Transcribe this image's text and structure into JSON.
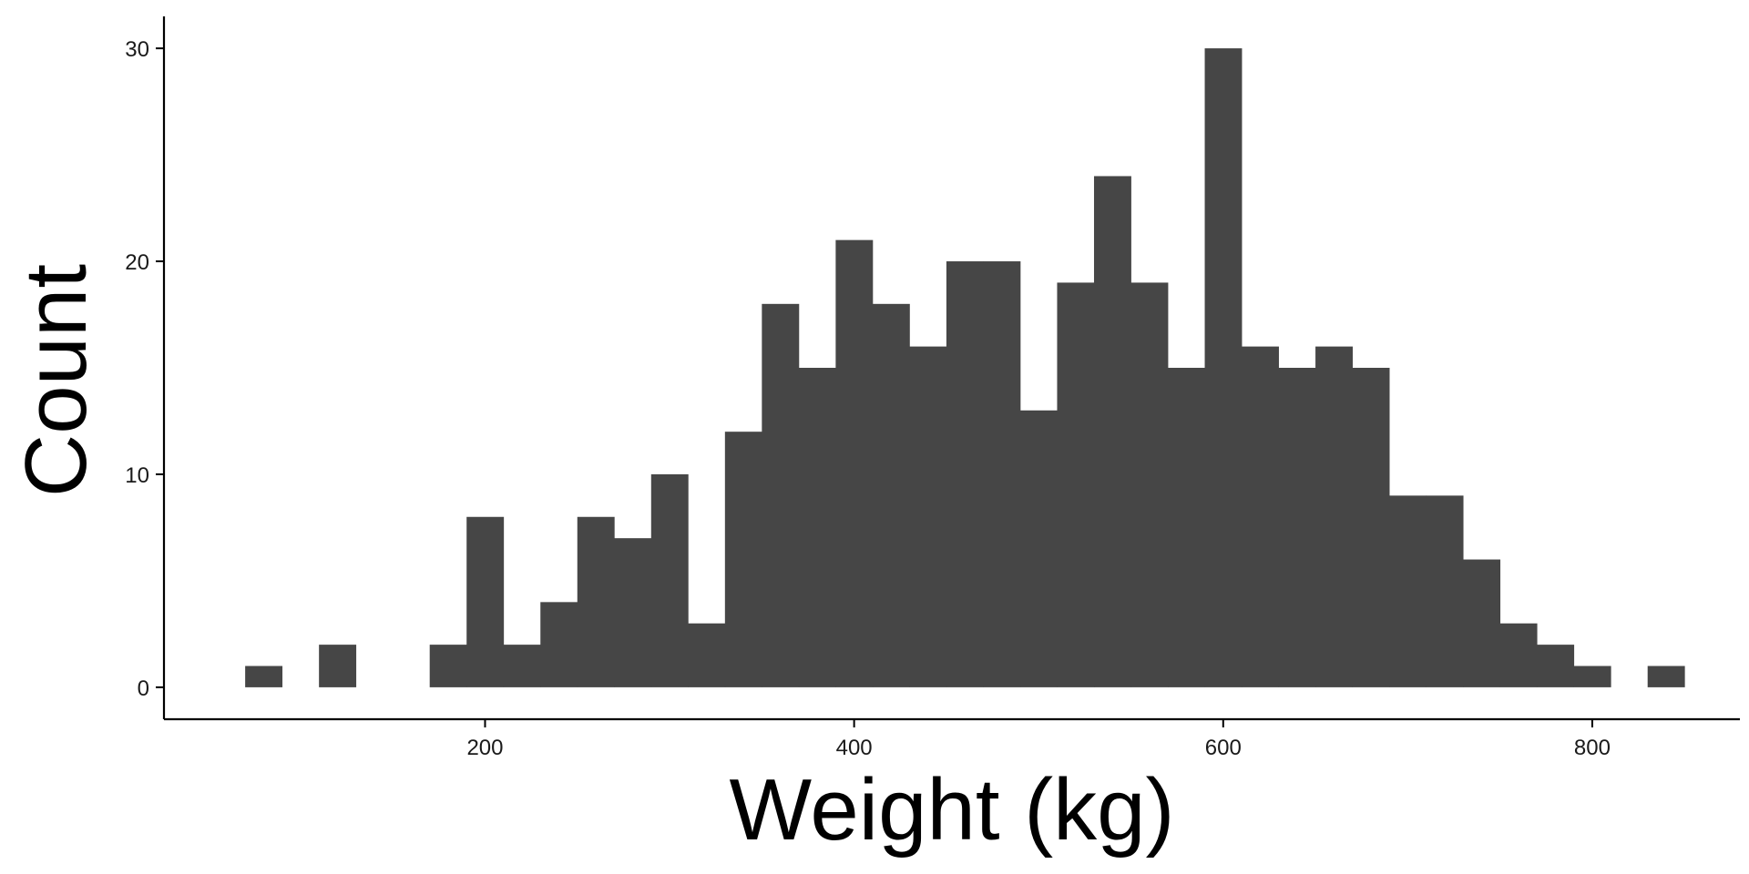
{
  "chart_data": {
    "type": "bar",
    "subtype": "histogram",
    "xlabel": "Weight (kg)",
    "ylabel": "Count",
    "bin_width": 20,
    "bins": [
      {
        "start": 70,
        "end": 90,
        "count": 1
      },
      {
        "start": 90,
        "end": 110,
        "count": 0
      },
      {
        "start": 110,
        "end": 130,
        "count": 2
      },
      {
        "start": 130,
        "end": 150,
        "count": 0
      },
      {
        "start": 150,
        "end": 170,
        "count": 0
      },
      {
        "start": 170,
        "end": 190,
        "count": 2
      },
      {
        "start": 190,
        "end": 210,
        "count": 8
      },
      {
        "start": 210,
        "end": 230,
        "count": 2
      },
      {
        "start": 230,
        "end": 250,
        "count": 4
      },
      {
        "start": 250,
        "end": 270,
        "count": 8
      },
      {
        "start": 270,
        "end": 290,
        "count": 7
      },
      {
        "start": 290,
        "end": 310,
        "count": 10
      },
      {
        "start": 310,
        "end": 330,
        "count": 3
      },
      {
        "start": 330,
        "end": 350,
        "count": 12
      },
      {
        "start": 350,
        "end": 370,
        "count": 18
      },
      {
        "start": 370,
        "end": 390,
        "count": 15
      },
      {
        "start": 390,
        "end": 410,
        "count": 21
      },
      {
        "start": 410,
        "end": 430,
        "count": 18
      },
      {
        "start": 430,
        "end": 450,
        "count": 16
      },
      {
        "start": 450,
        "end": 470,
        "count": 20
      },
      {
        "start": 470,
        "end": 490,
        "count": 20
      },
      {
        "start": 490,
        "end": 510,
        "count": 13
      },
      {
        "start": 510,
        "end": 530,
        "count": 19
      },
      {
        "start": 530,
        "end": 550,
        "count": 24
      },
      {
        "start": 550,
        "end": 570,
        "count": 19
      },
      {
        "start": 570,
        "end": 590,
        "count": 15
      },
      {
        "start": 590,
        "end": 610,
        "count": 30
      },
      {
        "start": 610,
        "end": 630,
        "count": 16
      },
      {
        "start": 630,
        "end": 650,
        "count": 15
      },
      {
        "start": 650,
        "end": 670,
        "count": 16
      },
      {
        "start": 670,
        "end": 690,
        "count": 15
      },
      {
        "start": 690,
        "end": 710,
        "count": 9
      },
      {
        "start": 710,
        "end": 730,
        "count": 9
      },
      {
        "start": 730,
        "end": 750,
        "count": 6
      },
      {
        "start": 750,
        "end": 770,
        "count": 3
      },
      {
        "start": 770,
        "end": 790,
        "count": 2
      },
      {
        "start": 790,
        "end": 810,
        "count": 1
      },
      {
        "start": 810,
        "end": 830,
        "count": 0
      },
      {
        "start": 830,
        "end": 850,
        "count": 1
      }
    ],
    "xlim": [
      26,
      880
    ],
    "ylim": [
      -1.5,
      31.5
    ],
    "xticks": [
      200,
      400,
      600,
      800
    ],
    "xtick_labels": [
      "200",
      "400",
      "600",
      "800"
    ],
    "yticks": [
      0,
      10,
      20,
      30
    ],
    "ytick_labels": [
      "0",
      "10",
      "20",
      "30"
    ],
    "grid": false,
    "legend": "none",
    "colors": {
      "bar_fill": "#464646",
      "axis_line": "#000000",
      "text": "#1a1a1a",
      "background": "#ffffff"
    }
  }
}
